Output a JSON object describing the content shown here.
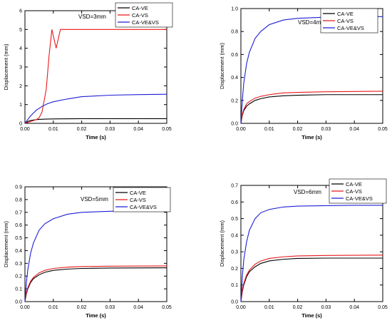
{
  "colors": {
    "CA-VE": "#000000",
    "CA-VS": "#e8191c",
    "CA-VE&VS": "#1f1fd6"
  },
  "chart_data": [
    {
      "type": "line",
      "annotation": "VSD=3mm",
      "xlabel": "Time (s)",
      "ylabel": "Displacement (mm)",
      "xlim": [
        0,
        0.05
      ],
      "ylim": [
        0,
        6
      ],
      "xticks": [
        "0.00",
        "0.01",
        "0.02",
        "0.03",
        "0.04",
        "0.05"
      ],
      "yticks": [
        "0",
        "1",
        "2",
        "3",
        "4",
        "5",
        "6"
      ],
      "legend_position": "top-right",
      "series": [
        {
          "name": "CA-VE",
          "x": [
            0,
            0.001,
            0.002,
            0.003,
            0.005,
            0.008,
            0.012,
            0.02,
            0.03,
            0.05
          ],
          "y": [
            0,
            0.1,
            0.15,
            0.18,
            0.21,
            0.23,
            0.24,
            0.25,
            0.25,
            0.25
          ]
        },
        {
          "name": "CA-VS",
          "x": [
            0,
            0.002,
            0.004,
            0.005,
            0.006,
            0.0075,
            0.0085,
            0.0095,
            0.011,
            0.0125,
            0.015,
            0.05
          ],
          "y": [
            0,
            0.1,
            0.2,
            0.3,
            0.6,
            1.8,
            3.6,
            5.0,
            4.0,
            5.0,
            5.0,
            5.0
          ]
        },
        {
          "name": "CA-VE&VS",
          "x": [
            0,
            0.001,
            0.002,
            0.004,
            0.006,
            0.008,
            0.01,
            0.015,
            0.02,
            0.03,
            0.04,
            0.05
          ],
          "y": [
            0,
            0.2,
            0.4,
            0.7,
            0.9,
            1.05,
            1.15,
            1.3,
            1.42,
            1.5,
            1.53,
            1.55
          ]
        }
      ]
    },
    {
      "type": "line",
      "annotation": "VSD=4mm",
      "xlabel": "Time (s)",
      "ylabel": "Displacement (mm)",
      "xlim": [
        0,
        0.05
      ],
      "ylim": [
        0,
        1.0
      ],
      "xticks": [
        "0.00",
        "0.01",
        "0.02",
        "0.03",
        "0.04",
        "0.05"
      ],
      "yticks": [
        "0.0",
        "0.2",
        "0.4",
        "0.6",
        "0.8",
        "1.0"
      ],
      "legend_position": "top-right",
      "series": [
        {
          "name": "CA-VE",
          "x": [
            0,
            0.0005,
            0.001,
            0.002,
            0.003,
            0.005,
            0.007,
            0.01,
            0.015,
            0.02,
            0.03,
            0.05
          ],
          "y": [
            0,
            0.07,
            0.11,
            0.15,
            0.17,
            0.2,
            0.215,
            0.23,
            0.24,
            0.245,
            0.25,
            0.25
          ]
        },
        {
          "name": "CA-VS",
          "x": [
            0,
            0.0005,
            0.001,
            0.002,
            0.003,
            0.005,
            0.007,
            0.01,
            0.015,
            0.02,
            0.03,
            0.05
          ],
          "y": [
            0,
            0.08,
            0.12,
            0.17,
            0.19,
            0.22,
            0.235,
            0.25,
            0.265,
            0.27,
            0.275,
            0.28
          ]
        },
        {
          "name": "CA-VE&VS",
          "x": [
            0,
            0.0005,
            0.001,
            0.002,
            0.003,
            0.005,
            0.007,
            0.01,
            0.015,
            0.02,
            0.03,
            0.04,
            0.05
          ],
          "y": [
            0,
            0.2,
            0.35,
            0.52,
            0.62,
            0.74,
            0.8,
            0.86,
            0.9,
            0.915,
            0.925,
            0.93,
            0.93
          ]
        }
      ]
    },
    {
      "type": "line",
      "annotation": "VSD=5mm",
      "xlabel": "Time (s)",
      "ylabel": "Displacement (mm)",
      "xlim": [
        0,
        0.05
      ],
      "ylim": [
        0,
        0.9
      ],
      "xticks": [
        "0.00",
        "0.01",
        "0.02",
        "0.03",
        "0.04",
        "0.05"
      ],
      "yticks": [
        "0.0",
        "0.1",
        "0.2",
        "0.3",
        "0.4",
        "0.5",
        "0.6",
        "0.7",
        "0.8",
        "0.9"
      ],
      "legend_position": "top-right",
      "series": [
        {
          "name": "CA-VE",
          "x": [
            0,
            0.0005,
            0.001,
            0.002,
            0.003,
            0.005,
            0.007,
            0.01,
            0.015,
            0.02,
            0.03,
            0.05
          ],
          "y": [
            0,
            0.06,
            0.1,
            0.15,
            0.18,
            0.21,
            0.23,
            0.245,
            0.255,
            0.26,
            0.263,
            0.265
          ]
        },
        {
          "name": "CA-VS",
          "x": [
            0,
            0.0005,
            0.001,
            0.002,
            0.003,
            0.005,
            0.007,
            0.01,
            0.015,
            0.02,
            0.03,
            0.05
          ],
          "y": [
            0,
            0.07,
            0.11,
            0.16,
            0.19,
            0.225,
            0.245,
            0.26,
            0.27,
            0.275,
            0.278,
            0.28
          ]
        },
        {
          "name": "CA-VE&VS",
          "x": [
            0,
            0.0005,
            0.001,
            0.002,
            0.003,
            0.005,
            0.007,
            0.01,
            0.015,
            0.02,
            0.03,
            0.04,
            0.05
          ],
          "y": [
            0,
            0.15,
            0.25,
            0.38,
            0.46,
            0.56,
            0.61,
            0.65,
            0.685,
            0.7,
            0.708,
            0.71,
            0.71
          ]
        }
      ]
    },
    {
      "type": "line",
      "annotation": "VSD=6mm",
      "xlabel": "Time (s)",
      "ylabel": "Displacement (mm)",
      "xlim": [
        0,
        0.05
      ],
      "ylim": [
        0,
        0.7
      ],
      "xticks": [
        "0.00",
        "0.01",
        "0.02",
        "0.03",
        "0.04",
        "0.05"
      ],
      "yticks": [
        "0.0",
        "0.1",
        "0.2",
        "0.3",
        "0.4",
        "0.5",
        "0.6",
        "0.7"
      ],
      "legend_position": "top-right",
      "series": [
        {
          "name": "CA-VE",
          "x": [
            0,
            0.0005,
            0.001,
            0.002,
            0.003,
            0.005,
            0.007,
            0.01,
            0.015,
            0.02,
            0.03,
            0.05
          ],
          "y": [
            0,
            0.06,
            0.1,
            0.15,
            0.18,
            0.21,
            0.23,
            0.245,
            0.255,
            0.26,
            0.262,
            0.262
          ]
        },
        {
          "name": "CA-VS",
          "x": [
            0,
            0.0005,
            0.001,
            0.002,
            0.003,
            0.005,
            0.007,
            0.01,
            0.015,
            0.02,
            0.03,
            0.05
          ],
          "y": [
            0,
            0.07,
            0.11,
            0.16,
            0.19,
            0.225,
            0.245,
            0.26,
            0.27,
            0.275,
            0.278,
            0.28
          ]
        },
        {
          "name": "CA-VE&VS",
          "x": [
            0,
            0.0005,
            0.001,
            0.002,
            0.003,
            0.005,
            0.007,
            0.01,
            0.015,
            0.02,
            0.03,
            0.04,
            0.05
          ],
          "y": [
            0,
            0.15,
            0.25,
            0.36,
            0.43,
            0.5,
            0.535,
            0.555,
            0.57,
            0.575,
            0.578,
            0.58,
            0.58
          ]
        }
      ]
    }
  ]
}
